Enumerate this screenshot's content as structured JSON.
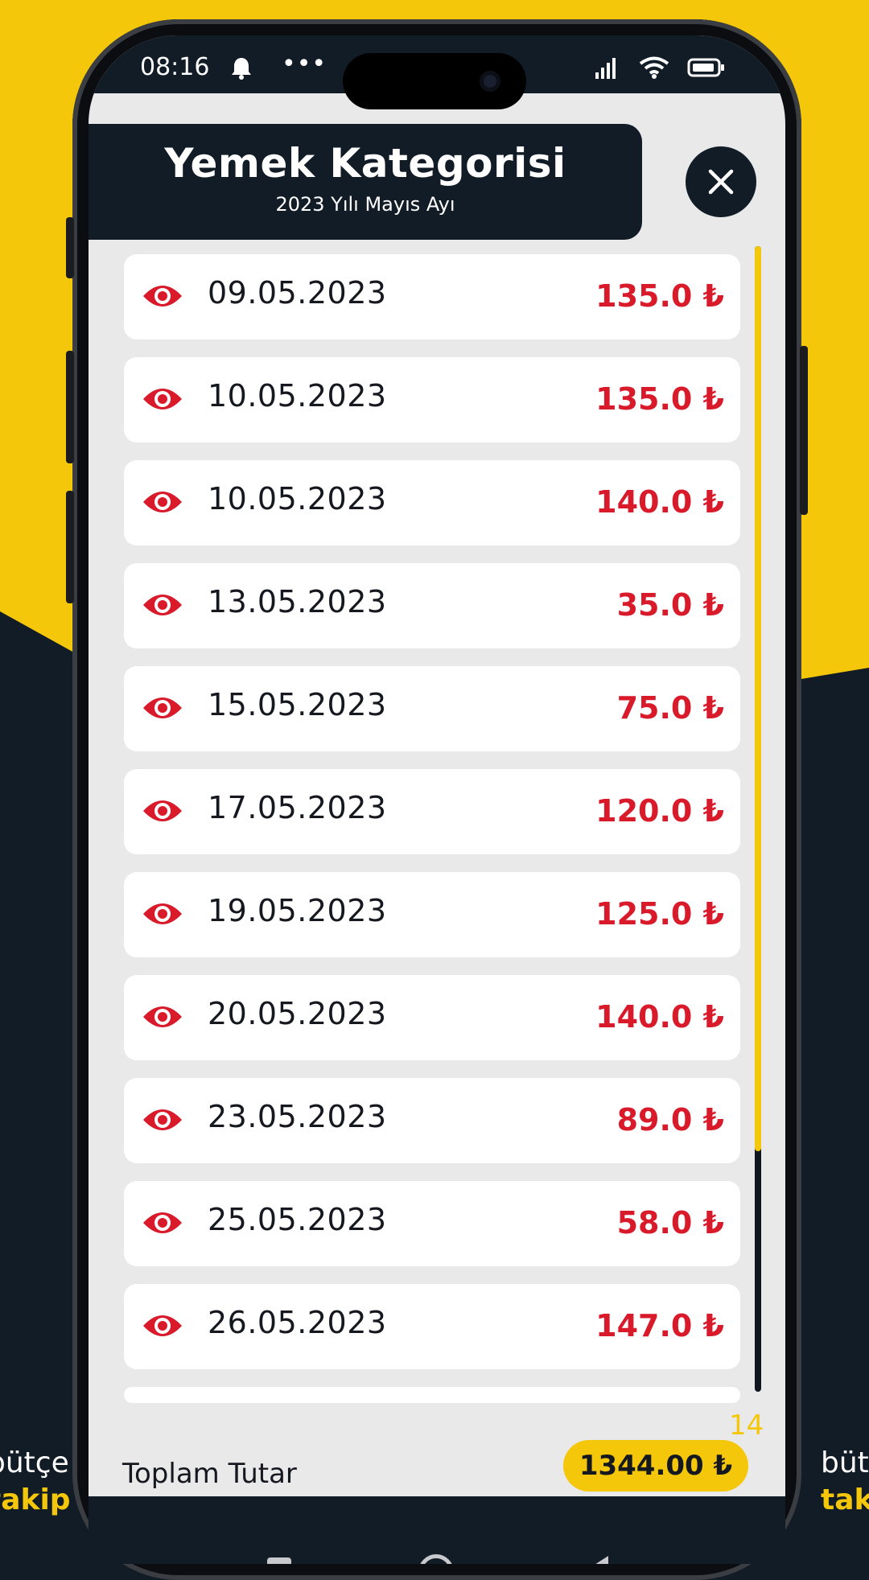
{
  "colors": {
    "brand_yellow": "#f4c70a",
    "navy": "#111c27",
    "amount_red": "#d81a2a"
  },
  "background_text": {
    "left_line1": "bütçe",
    "left_line2": "takip",
    "right_line1": "bütçe",
    "right_line2": "takip"
  },
  "statusbar": {
    "time": "08:16",
    "more": "•••",
    "icons": [
      "bell-icon",
      "signal-icon",
      "wifi-icon",
      "battery-icon"
    ]
  },
  "header": {
    "title": "Yemek Kategorisi",
    "subtitle": "2023 Yılı  Mayıs Ayı",
    "close_icon": "close-icon"
  },
  "entries": [
    {
      "date": "09.05.2023",
      "amount": "135.0 ₺"
    },
    {
      "date": "10.05.2023",
      "amount": "135.0 ₺"
    },
    {
      "date": "10.05.2023",
      "amount": "140.0 ₺"
    },
    {
      "date": "13.05.2023",
      "amount": "35.0 ₺"
    },
    {
      "date": "15.05.2023",
      "amount": "75.0 ₺"
    },
    {
      "date": "17.05.2023",
      "amount": "120.0 ₺"
    },
    {
      "date": "19.05.2023",
      "amount": "125.0 ₺"
    },
    {
      "date": "20.05.2023",
      "amount": "140.0 ₺"
    },
    {
      "date": "23.05.2023",
      "amount": "89.0 ₺"
    },
    {
      "date": "25.05.2023",
      "amount": "58.0 ₺"
    },
    {
      "date": "26.05.2023",
      "amount": "147.0 ₺"
    }
  ],
  "footer": {
    "count": "14",
    "total_label": "Toplam Tutar",
    "total_value": "1344.00 ₺"
  },
  "scroll": {
    "visible_fraction": 0.79
  }
}
